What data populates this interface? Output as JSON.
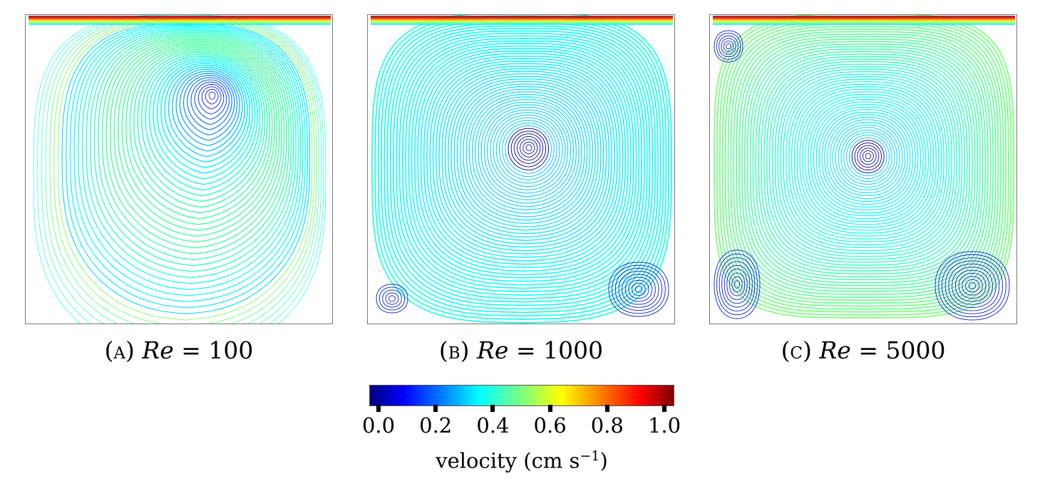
{
  "panels": [
    {
      "letter": "(a)",
      "var": "Re",
      "eq": "= 100",
      "re": 100
    },
    {
      "letter": "(b)",
      "var": "Re",
      "eq": "= 1000",
      "re": 1000
    },
    {
      "letter": "(c)",
      "var": "Re",
      "eq": "= 5000",
      "re": 5000
    }
  ],
  "colorbar": {
    "ticks": [
      "0.0",
      "0.2",
      "0.4",
      "0.6",
      "0.8",
      "1.0"
    ],
    "label_text": "velocity (cm s",
    "label_exp": "−1",
    "label_close": ")",
    "colors": {
      "min": "#0000ff",
      "mid": "#00ffff",
      "max": "#ff0000"
    }
  }
}
